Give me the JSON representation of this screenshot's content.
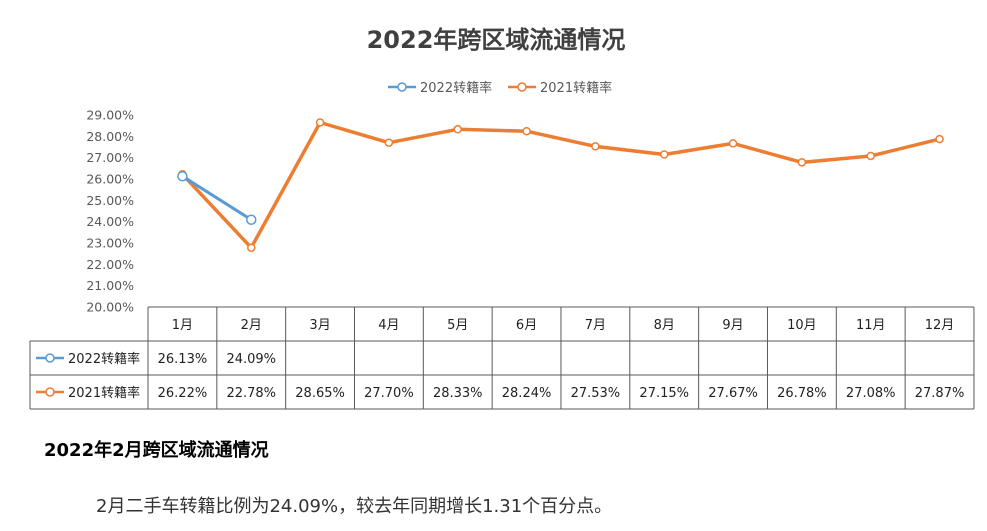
{
  "chart_data": {
    "type": "line",
    "title": "2022年跨区域流通情况",
    "categories": [
      "1月",
      "2月",
      "3月",
      "4月",
      "5月",
      "6月",
      "7月",
      "8月",
      "9月",
      "10月",
      "11月",
      "12月"
    ],
    "ylim": [
      20,
      29
    ],
    "yticks": [
      "20.00%",
      "21.00%",
      "22.00%",
      "23.00%",
      "24.00%",
      "25.00%",
      "26.00%",
      "27.00%",
      "28.00%",
      "29.00%"
    ],
    "legend_position": "top-center",
    "series": [
      {
        "name": "2022转籍率",
        "color": "#5b9bd5",
        "values": [
          26.13,
          24.09,
          null,
          null,
          null,
          null,
          null,
          null,
          null,
          null,
          null,
          null
        ],
        "labels": [
          "26.13%",
          "24.09%",
          "",
          "",
          "",
          "",
          "",
          "",
          "",
          "",
          "",
          ""
        ]
      },
      {
        "name": "2021转籍率",
        "color": "#ed7d31",
        "values": [
          26.22,
          22.78,
          28.65,
          27.7,
          28.33,
          28.24,
          27.53,
          27.15,
          27.67,
          26.78,
          27.08,
          27.87
        ],
        "labels": [
          "26.22%",
          "22.78%",
          "28.65%",
          "27.70%",
          "28.33%",
          "28.24%",
          "27.53%",
          "27.15%",
          "27.67%",
          "26.78%",
          "27.08%",
          "27.87%"
        ]
      }
    ]
  },
  "article": {
    "heading": "2022年2月跨区域流通情况",
    "body": "2月二手车转籍比例为24.09%，较去年同期增长1.31个百分点。"
  }
}
